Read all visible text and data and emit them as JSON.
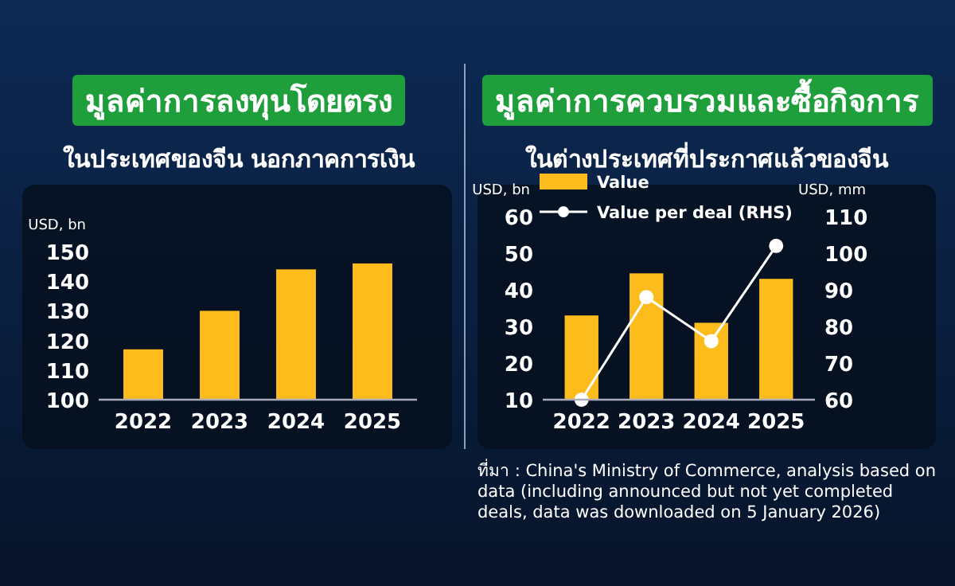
{
  "chart_data": [
    {
      "type": "bar",
      "title": "มูลค่าการลงทุนโดยตรง",
      "subtitle": "ในประเทศของจีน นอกภาคการเงิน",
      "ylabel": "USD, bn",
      "categories": [
        "2022",
        "2023",
        "2024",
        "2025"
      ],
      "values": [
        117,
        130,
        144,
        146
      ],
      "color": "#fbbc1c",
      "ylim": [
        100,
        150
      ],
      "yticks": [
        100,
        110,
        120,
        130,
        140,
        150
      ]
    },
    {
      "type": "bar",
      "title": "มูลค่าการควบรวมและซื้อกิจการ",
      "subtitle": "ในต่างประเทศที่ประกาศแล้วของจีน",
      "ylabel": "USD, bn",
      "y2label": "USD, mm",
      "categories": [
        "2022",
        "2023",
        "2024",
        "2025"
      ],
      "legend": "top",
      "marker": "circle",
      "series": [
        {
          "name": "Value",
          "color": "#fbbc1c",
          "values": [
            33,
            44.5,
            31,
            43
          ]
        },
        {
          "name": "Value per deal (RHS)",
          "type": "line",
          "axis": "y2",
          "color": "#ffffff",
          "values": [
            60,
            88,
            76,
            102
          ]
        }
      ],
      "ylim": [
        10,
        60
      ],
      "yticks": [
        10,
        20,
        30,
        40,
        50,
        60
      ],
      "y2lim": [
        60,
        110
      ],
      "y2ticks": [
        60,
        70,
        80,
        90,
        100,
        110
      ],
      "annotations": [
        "ที่มา : China's Ministry of Commerce, analysis based on data (including announced but not yet completed deals, data was downloaded on 5 January 2026)"
      ]
    }
  ]
}
